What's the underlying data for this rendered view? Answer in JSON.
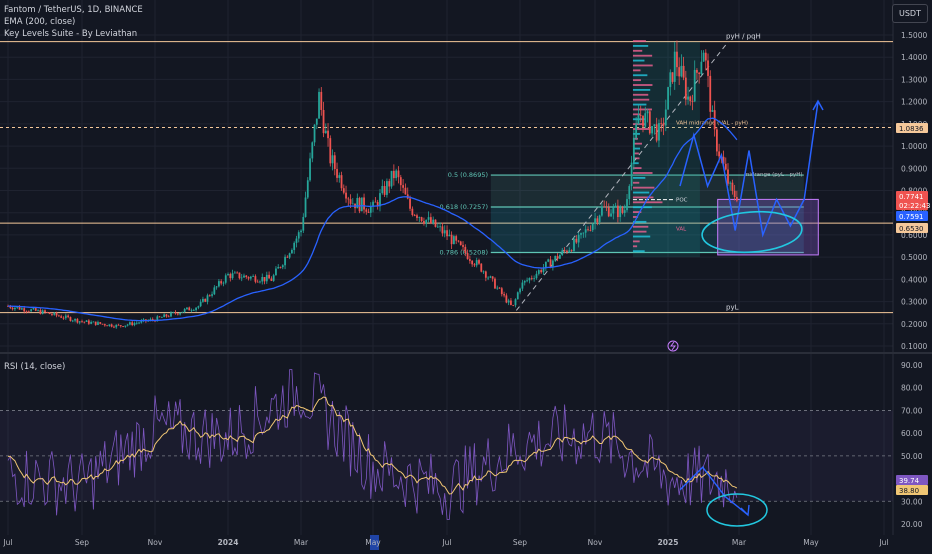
{
  "header": {
    "symbol_line": "Fantom / TetherUS, 1D, BINANCE",
    "ema_line": "EMA (200, close)",
    "indicator_line": "Key Levels Suite - By Leviathan",
    "currency_button": "USDT",
    "rsi_label": "RSI (14, close)"
  },
  "colors": {
    "background": "#131722",
    "grid": "#1f2330",
    "candle_up": "#26a69a",
    "candle_down": "#ef5350",
    "ema": "#2962ff",
    "key_level": "#f5c89a",
    "fib": "#5fc5b5",
    "rsi_line": "#7e57c2",
    "rsi_ma": "#f0c674",
    "forecast": "#2962ff",
    "circle": "#22c8e0"
  },
  "price_axis": {
    "ticks": [
      "1.5000",
      "1.4000",
      "1.3000",
      "1.2000",
      "1.1000",
      "1.0000",
      "0.9000",
      "0.8000",
      "0.7000",
      "0.6000",
      "0.5000",
      "0.4000",
      "0.3000",
      "0.2000",
      "0.1000"
    ],
    "tags": [
      {
        "text": "1.0836",
        "bg": "#f5c89a",
        "fg": "#131722"
      },
      {
        "text": "0.7741",
        "bg": "#ef5350",
        "fg": "#ffffff"
      },
      {
        "text": "02:22:43",
        "bg": "#ef5350",
        "fg": "#ffffff"
      },
      {
        "text": "0.7591",
        "bg": "#2962ff",
        "fg": "#ffffff"
      },
      {
        "text": "0.6530",
        "bg": "#f5c89a",
        "fg": "#131722"
      }
    ]
  },
  "rsi_axis": {
    "ticks": [
      "90.00",
      "80.00",
      "70.00",
      "60.00",
      "50.00",
      "40.00",
      "30.00",
      "20.00"
    ],
    "tags": [
      {
        "text": "39.74",
        "bg": "#7e57c2",
        "fg": "#ffffff"
      },
      {
        "text": "38.80",
        "bg": "#f0c674",
        "fg": "#131722"
      }
    ]
  },
  "time_axis": {
    "labels": [
      "Jul",
      "Sep",
      "Nov",
      "2024",
      "Mar",
      "May",
      "Jul",
      "Sep",
      "Nov",
      "2025",
      "Mar",
      "May",
      "Jul"
    ]
  },
  "annotations": {
    "pyH": "pyH / pqH",
    "pyL": "pyL",
    "vah": "VAH midrange (VAL - pyH)",
    "midrange": "midrange (pyL - pyH)",
    "poc": "POC",
    "val": "VAL",
    "fib_05": "0.5 (0.8695)",
    "fib_0618": "0.618 (0.7257)",
    "fib_0786": "0.786 (0.5208)"
  },
  "chart_data": [
    {
      "type": "line",
      "title": "Fantom / TetherUS, 1D, BINANCE",
      "x": [
        "Jul 2023",
        "Sep 2023",
        "Nov 2023",
        "Jan 2024",
        "Mar 2024",
        "May 2024",
        "Jul 2024",
        "Sep 2024",
        "Nov 2024",
        "Jan 2025",
        "Mar 2025",
        "May 2025",
        "Jul 2025"
      ],
      "ylim": [
        0.07,
        1.53
      ],
      "series": [
        {
          "name": "Fantom / TetherUS",
          "values": [
            0.28,
            0.21,
            0.22,
            0.42,
            1.03,
            0.74,
            0.37,
            0.44,
            0.68,
            0.82,
            null,
            null,
            null
          ]
        },
        {
          "name": "EMA (200, close)",
          "values": [
            0.3,
            0.26,
            0.23,
            0.29,
            0.52,
            0.66,
            0.55,
            0.53,
            0.6,
            0.76,
            null,
            null,
            null
          ]
        }
      ],
      "key_levels": {
        "pyH": 1.47,
        "pyL": 0.25,
        "VAH_midrange": 1.0836,
        "midrange": 0.8695,
        "POC": 0.7591,
        "level": 0.653
      },
      "fibonacci": [
        {
          "level": "0.5",
          "price": 0.8695
        },
        {
          "level": "0.618",
          "price": 0.7257
        },
        {
          "level": "0.786",
          "price": 0.5208
        }
      ],
      "forecast_path": [
        0.82,
        1.05,
        0.82,
        0.96,
        0.62,
        0.98,
        0.6,
        0.76,
        0.64,
        0.76,
        1.2
      ]
    },
    {
      "type": "line",
      "title": "RSI (14, close)",
      "x": [
        "Jul 2023",
        "Sep 2023",
        "Nov 2023",
        "Jan 2024",
        "Mar 2024",
        "May 2024",
        "Jul 2024",
        "Sep 2024",
        "Nov 2024",
        "Jan 2025",
        "Mar 2025"
      ],
      "ylim": [
        18,
        92
      ],
      "bands": [
        30,
        50,
        70
      ],
      "series": [
        {
          "name": "RSI",
          "values": [
            42,
            37,
            62,
            58,
            80,
            45,
            35,
            55,
            60,
            39.74,
            null
          ]
        },
        {
          "name": "RSI-based MA",
          "values": [
            44,
            40,
            57,
            55,
            73,
            48,
            40,
            52,
            58,
            38.8,
            null
          ]
        }
      ],
      "forecast_path": [
        35,
        45,
        32,
        24
      ]
    }
  ]
}
